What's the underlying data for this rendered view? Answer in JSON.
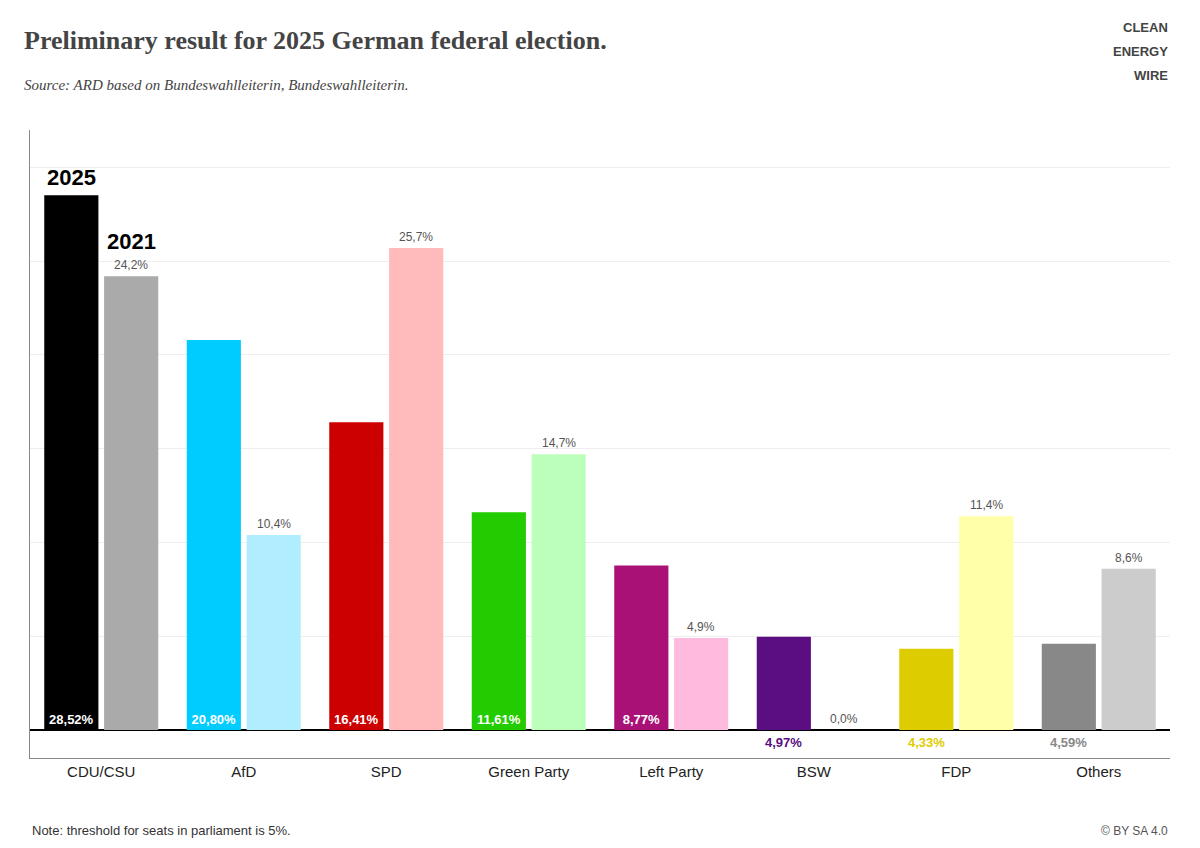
{
  "chart_data": {
    "type": "bar",
    "title": "Preliminary result for 2025 German federal election.",
    "subtitle": "Source: ARD based on Bundeswahlleiterin, Bundeswahlleiterin.",
    "categories": [
      "CDU/CSU",
      "AfD",
      "SPD",
      "Green Party",
      "Left Party",
      "BSW",
      "FDP",
      "Others"
    ],
    "series": [
      {
        "name": "2025",
        "values": [
          28.52,
          20.8,
          16.41,
          11.61,
          8.77,
          4.97,
          4.33,
          4.59
        ],
        "value_labels": [
          "28,52%",
          "20,80%",
          "16,41%",
          "11,61%",
          "8,77%",
          "4,97%",
          "4,33%",
          "4,59%"
        ],
        "colors": [
          "#000000",
          "#00ccff",
          "#cc0000",
          "#22cc00",
          "#aa1177",
          "#5b0e82",
          "#ddcc00",
          "#888888"
        ]
      },
      {
        "name": "2021",
        "values": [
          24.2,
          10.4,
          25.7,
          14.7,
          4.9,
          0.0,
          11.4,
          8.6
        ],
        "value_labels": [
          "24,2%",
          "10,4%",
          "25,7%",
          "14,7%",
          "4,9%",
          "0,0%",
          "11,4%",
          "8,6%"
        ],
        "colors": [
          "#aaaaaa",
          "#b0eeff",
          "#ffbbbb",
          "#bbffbb",
          "#ffbbdd",
          "#ddbbff",
          "#ffffaa",
          "#cccccc"
        ]
      }
    ],
    "ylim": [
      -1.5,
      32
    ],
    "yticks": [
      0,
      5,
      10,
      15,
      20,
      25,
      30
    ],
    "grid": true,
    "data_labels": true,
    "tick_labels": "x",
    "annotations": [
      "Note: threshold for seats in parliament is 5%.",
      "©",
      "BY SA 4.0",
      "CLEAN",
      "ENERGY",
      "WIRE"
    ]
  }
}
